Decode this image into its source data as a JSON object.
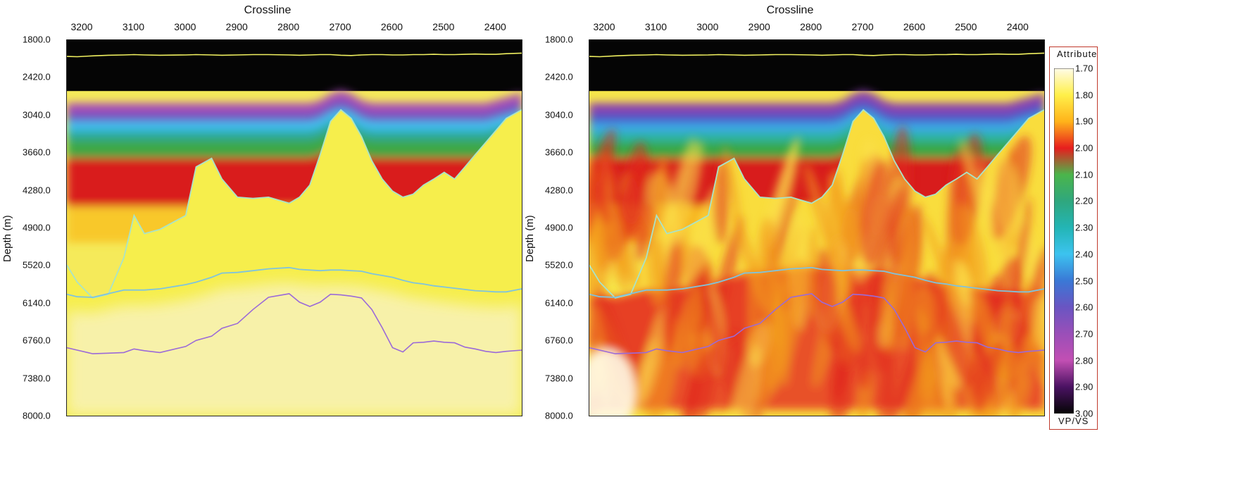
{
  "chart_data": [
    {
      "type": "heatmap",
      "panel": "left",
      "xlabel": "Crossline",
      "ylabel": "Depth (m)",
      "x_ticks": [
        3200,
        3100,
        3000,
        2900,
        2800,
        2700,
        2600,
        2500,
        2400
      ],
      "x_tick_labels": [
        "3200",
        "3100",
        "3000",
        "2900",
        "2800",
        "2700",
        "2600",
        "2500",
        "2400"
      ],
      "y_ticks": [
        1800.0,
        2420.0,
        3040.0,
        3660.0,
        4280.0,
        4900.0,
        5520.0,
        6140.0,
        6760.0,
        7380.0,
        8000.0
      ],
      "y_tick_labels": [
        "1800.0",
        "2420.0",
        "3040.0",
        "3660.0",
        "4280.0",
        "4900.0",
        "5520.0",
        "6140.0",
        "6760.0",
        "7380.0",
        "8000.0"
      ],
      "xlim": [
        3230,
        2350
      ],
      "ylim": [
        1800,
        8000
      ],
      "horizons": {
        "x": [
          3230,
          3210,
          3180,
          3150,
          3120,
          3100,
          3080,
          3050,
          3000,
          2980,
          2950,
          2930,
          2900,
          2870,
          2840,
          2800,
          2780,
          2760,
          2740,
          2720,
          2700,
          2680,
          2660,
          2640,
          2620,
          2600,
          2580,
          2560,
          2540,
          2520,
          2500,
          2480,
          2460,
          2440,
          2420,
          2400,
          2380,
          2350
        ],
        "top": [
          2080,
          2085,
          2070,
          2060,
          2055,
          2050,
          2055,
          2060,
          2055,
          2050,
          2055,
          2060,
          2055,
          2050,
          2050,
          2055,
          2060,
          2055,
          2050,
          2050,
          2060,
          2065,
          2055,
          2050,
          2050,
          2055,
          2055,
          2050,
          2050,
          2045,
          2050,
          2050,
          2045,
          2040,
          2045,
          2045,
          2035,
          2025
        ],
        "salt": [
          5520,
          5800,
          6060,
          6000,
          5400,
          4700,
          5000,
          4930,
          4700,
          3900,
          3760,
          4100,
          4400,
          4420,
          4400,
          4500,
          4400,
          4200,
          3700,
          3150,
          2960,
          3100,
          3400,
          3800,
          4100,
          4300,
          4400,
          4350,
          4200,
          4100,
          3990,
          4100,
          3900,
          3700,
          3500,
          3300,
          3100,
          2960
        ],
        "base_salt": [
          6000,
          6040,
          6050,
          5990,
          5930,
          5930,
          5930,
          5910,
          5840,
          5800,
          5720,
          5650,
          5640,
          5610,
          5580,
          5560,
          5590,
          5600,
          5610,
          5600,
          5600,
          5610,
          5620,
          5660,
          5690,
          5720,
          5770,
          5810,
          5830,
          5860,
          5880,
          5900,
          5920,
          5940,
          5950,
          5960,
          5960,
          5910
        ],
        "deep": [
          6880,
          6920,
          6980,
          6970,
          6960,
          6900,
          6930,
          6960,
          6860,
          6760,
          6690,
          6560,
          6480,
          6250,
          6050,
          5990,
          6130,
          6200,
          6130,
          6000,
          6010,
          6030,
          6060,
          6250,
          6550,
          6880,
          6950,
          6800,
          6790,
          6770,
          6790,
          6800,
          6870,
          6900,
          6940,
          6960,
          6940,
          6920
        ]
      }
    },
    {
      "type": "heatmap",
      "panel": "right",
      "xlabel": "Crossline",
      "ylabel": "Depth (m)",
      "x_ticks": [
        3200,
        3100,
        3000,
        2900,
        2800,
        2700,
        2600,
        2500,
        2400
      ],
      "x_tick_labels": [
        "3200",
        "3100",
        "3000",
        "2900",
        "2800",
        "2700",
        "2600",
        "2500",
        "2400"
      ],
      "y_ticks": [
        1800.0,
        2420.0,
        3040.0,
        3660.0,
        4280.0,
        4900.0,
        5520.0,
        6140.0,
        6760.0,
        7380.0,
        8000.0
      ],
      "y_tick_labels": [
        "1800.0",
        "2420.0",
        "3040.0",
        "3660.0",
        "4280.0",
        "4900.0",
        "5520.0",
        "6140.0",
        "6760.0",
        "7380.0",
        "8000.0"
      ],
      "xlim": [
        3230,
        2350
      ],
      "ylim": [
        1800,
        8000
      ]
    }
  ],
  "colorbar": {
    "title": "Attribute",
    "label": "VP/VS",
    "min": 1.7,
    "max": 3.0,
    "tick_labels": [
      "1.70",
      "1.80",
      "1.90",
      "2.00",
      "2.10",
      "2.20",
      "2.30",
      "2.40",
      "2.50",
      "2.60",
      "2.70",
      "2.80",
      "2.90",
      "3.00"
    ],
    "colors": [
      "#fffbe8",
      "#fff04a",
      "#ffb31a",
      "#e71e1e",
      "#4bb54b",
      "#2fa77e",
      "#23b5b5",
      "#3cc3ef",
      "#3a78d6",
      "#6a55c2",
      "#9a4fb8",
      "#c24fb3",
      "#4a1262",
      "#050505"
    ]
  }
}
